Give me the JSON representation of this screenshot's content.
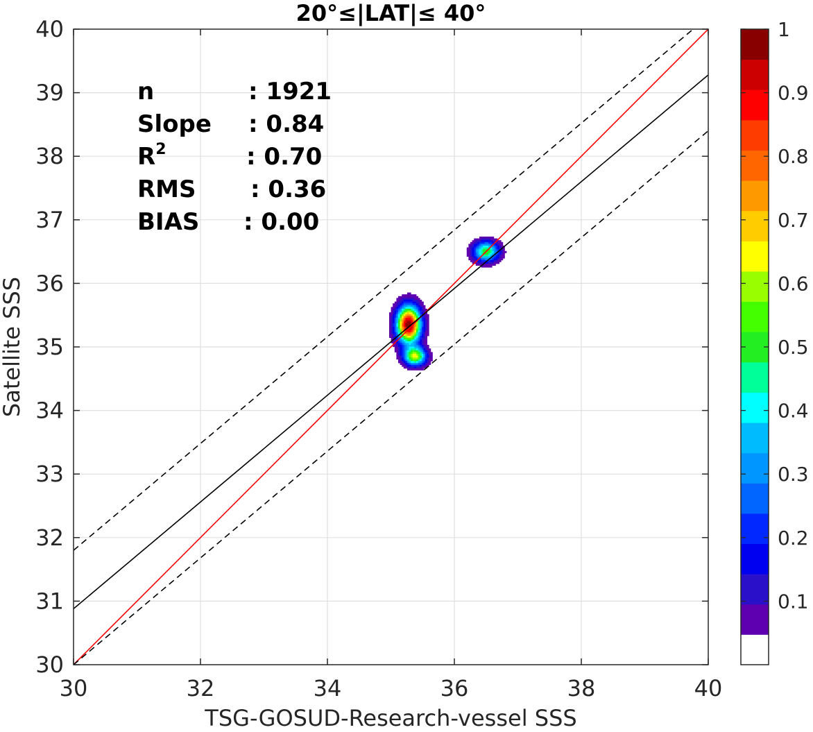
{
  "chart_data": {
    "type": "contour",
    "title": "20°≤|LAT|≤ 40°",
    "xlabel": "TSG-GOSUD-Research-vessel SSS",
    "ylabel": "Satellite SSS",
    "xlim": [
      30,
      40
    ],
    "ylim": [
      30,
      40
    ],
    "xticks": [
      "30",
      "32",
      "34",
      "36",
      "38",
      "40"
    ],
    "yticks": [
      "30",
      "31",
      "32",
      "33",
      "34",
      "35",
      "36",
      "37",
      "38",
      "39",
      "40"
    ],
    "grid": true,
    "stats": [
      {
        "label": "n",
        "value": ": 1921"
      },
      {
        "label": "Slope",
        "value": ": 0.84"
      },
      {
        "label": "R",
        "sup": "2",
        "value": ": 0.70"
      },
      {
        "label": "RMS",
        "value": ": 0.36"
      },
      {
        "label": "BIAS",
        "value": ": 0.00"
      }
    ],
    "lines": [
      {
        "name": "one-to-one",
        "color": "#ff0000",
        "dash": false,
        "slope": 1.0,
        "intercept": 0.0
      },
      {
        "name": "regression",
        "color": "#000000",
        "dash": false,
        "slope": 0.84,
        "intercept": 5.68
      },
      {
        "name": "upper-bound",
        "color": "#000000",
        "dash": true,
        "slope": 0.84,
        "intercept": 6.6
      },
      {
        "name": "lower-bound",
        "color": "#000000",
        "dash": true,
        "slope": 0.84,
        "intercept": 4.8
      }
    ],
    "density_peaks": [
      {
        "x": 35.28,
        "y": 35.35,
        "peak": 1.0,
        "sx": 0.13,
        "sy": 0.2
      },
      {
        "x": 35.38,
        "y": 34.85,
        "peak": 0.62,
        "sx": 0.12,
        "sy": 0.1
      },
      {
        "x": 36.5,
        "y": 36.5,
        "peak": 0.52,
        "sx": 0.14,
        "sy": 0.11
      }
    ],
    "colorbar": {
      "ticks": [
        "0.1",
        "0.2",
        "0.3",
        "0.4",
        "0.5",
        "0.6",
        "0.7",
        "0.8",
        "0.9",
        "1"
      ],
      "tick_values": [
        0.1,
        0.2,
        0.3,
        0.4,
        0.5,
        0.6,
        0.7,
        0.8,
        0.9,
        1.0
      ],
      "range": [
        0,
        1
      ],
      "colors": [
        "#ffffff",
        "#5e00b0",
        "#2a10c8",
        "#0000f0",
        "#0028ff",
        "#0066ff",
        "#0096ff",
        "#00bcff",
        "#00ffff",
        "#00ff99",
        "#22ee22",
        "#44ff00",
        "#99ff00",
        "#ffff00",
        "#ffcc00",
        "#ff9900",
        "#ff6600",
        "#ff3c00",
        "#ff0000",
        "#cc0000",
        "#880000"
      ]
    }
  }
}
